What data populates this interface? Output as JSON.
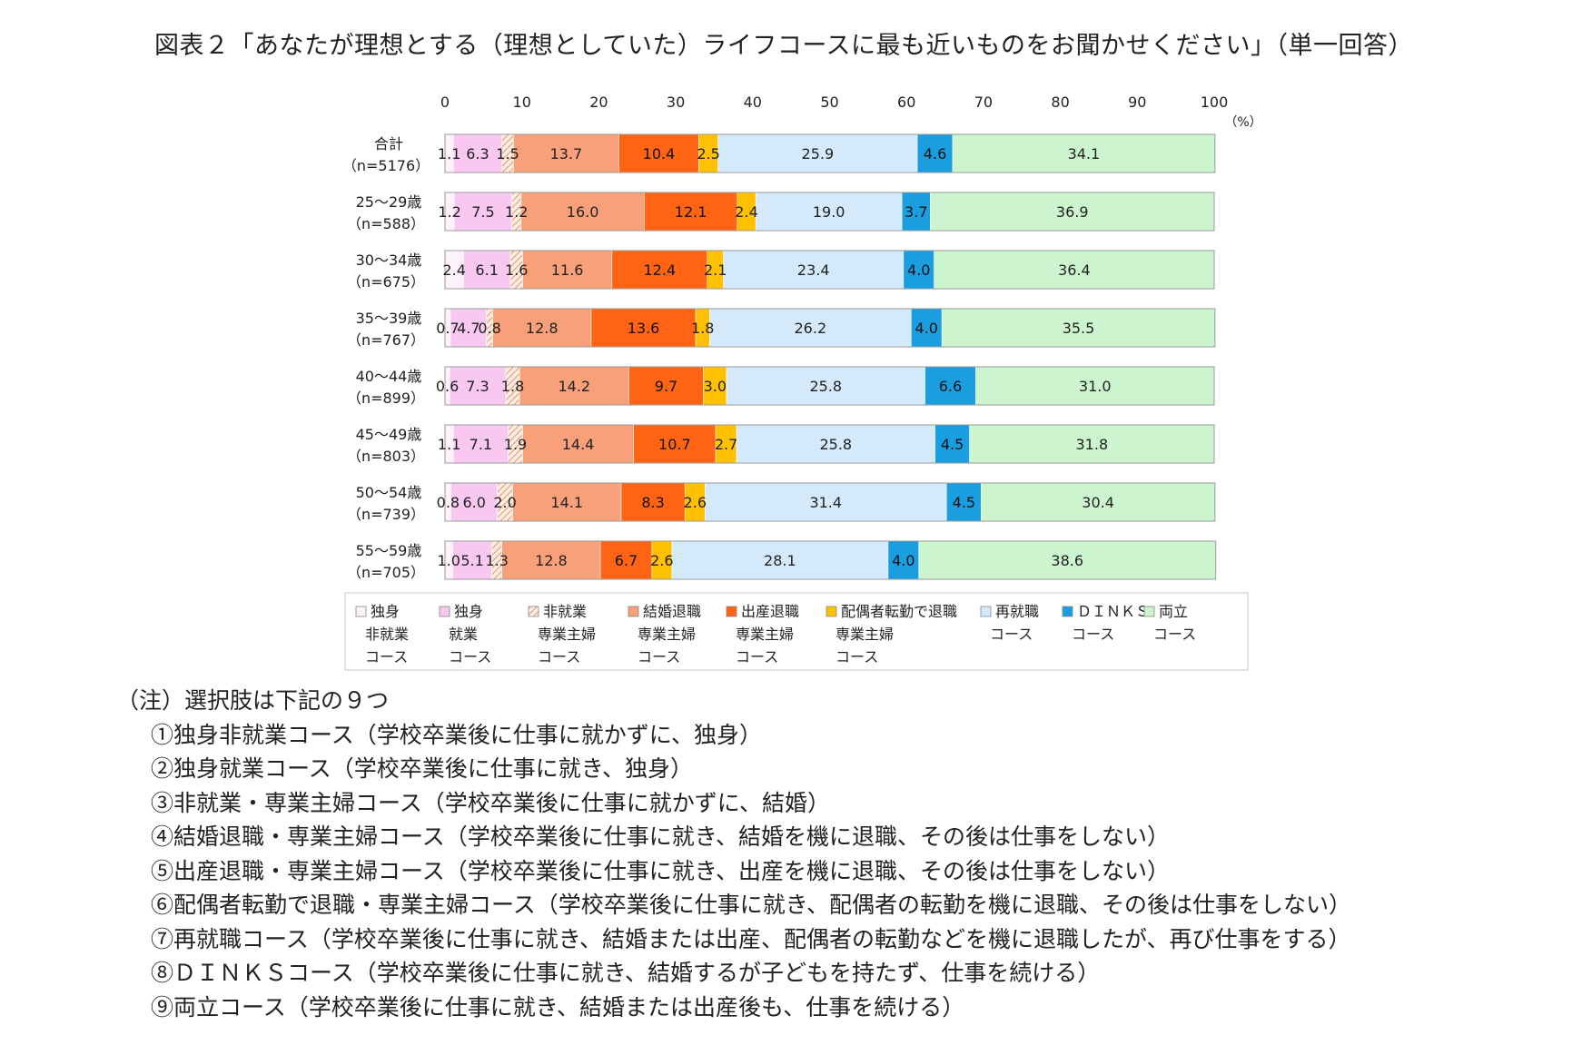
{
  "title": "図表２「あなたが理想とする（理想としていた）ライフコースに最も近いものをお聞かせください」（単一回答）",
  "chart_data": {
    "type": "bar",
    "orientation": "horizontal",
    "stacked": true,
    "unit_label": "（%）",
    "xlim": [
      0,
      100
    ],
    "ticks": [
      "0",
      "10",
      "20",
      "30",
      "40",
      "50",
      "60",
      "70",
      "80",
      "90",
      "100"
    ],
    "grid": false,
    "legend_position": "bottom",
    "categories": [
      {
        "name": "合計",
        "n": "（n=5176）"
      },
      {
        "name": "25～29歳",
        "n": "（n=588）"
      },
      {
        "name": "30～34歳",
        "n": "（n=675）"
      },
      {
        "name": "35～39歳",
        "n": "（n=767）"
      },
      {
        "name": "40～44歳",
        "n": "（n=899）"
      },
      {
        "name": "45～49歳",
        "n": "（n=803）"
      },
      {
        "name": "50～54歳",
        "n": "（n=739）"
      },
      {
        "name": "55～59歳",
        "n": "（n=705）"
      }
    ],
    "series": [
      {
        "legend": [
          "独身",
          "非就業",
          "コース"
        ],
        "color": "#fdf1fb",
        "pattern": "none",
        "values": [
          1.1,
          1.2,
          2.4,
          0.7,
          0.6,
          1.1,
          0.8,
          1.0
        ],
        "labels": [
          "1.1",
          "1.2",
          "2.4",
          "0.7",
          "0.6",
          "1.1",
          "0.8",
          "1.0"
        ]
      },
      {
        "legend": [
          "独身",
          "就業",
          "コース"
        ],
        "color": "#f8c8f0",
        "pattern": "none",
        "values": [
          6.3,
          7.5,
          6.1,
          4.7,
          7.3,
          7.1,
          6.0,
          5.1
        ],
        "labels": [
          "6.3",
          "7.5",
          "6.1",
          "4.7",
          "7.3",
          "7.1",
          "6.0",
          "5.1"
        ]
      },
      {
        "legend": [
          "非就業",
          "専業主婦",
          "コース"
        ],
        "color": "#fbe3d4",
        "pattern": "hatch",
        "values": [
          1.5,
          1.2,
          1.6,
          0.8,
          1.8,
          1.9,
          2.0,
          1.3
        ],
        "labels": [
          "1.5",
          "1.2",
          "1.6",
          "0.8",
          "1.8",
          "1.9",
          "2.0",
          "1.3"
        ]
      },
      {
        "legend": [
          "結婚退職",
          "専業主婦",
          "コース"
        ],
        "color": "#f7a07a",
        "pattern": "none",
        "values": [
          13.7,
          16.0,
          11.6,
          12.8,
          14.2,
          14.4,
          14.1,
          12.8
        ],
        "labels": [
          "13.7",
          "16.0",
          "11.6",
          "12.8",
          "14.2",
          "14.4",
          "14.1",
          "12.8"
        ]
      },
      {
        "legend": [
          "出産退職",
          "専業主婦",
          "コース"
        ],
        "color": "#ff6414",
        "pattern": "none",
        "values": [
          10.4,
          12.1,
          12.4,
          13.6,
          9.7,
          10.7,
          8.3,
          6.7
        ],
        "labels": [
          "10.4",
          "12.1",
          "12.4",
          "13.6",
          "9.7",
          "10.7",
          "8.3",
          "6.7"
        ]
      },
      {
        "legend": [
          "配偶者転勤で退職",
          "専業主婦",
          "コース"
        ],
        "color": "#ffc000",
        "pattern": "none",
        "values": [
          2.5,
          2.4,
          2.1,
          1.8,
          3.0,
          2.7,
          2.6,
          2.6
        ],
        "labels": [
          "2.5",
          "2.4",
          "2.1",
          "1.8",
          "3.0",
          "2.7",
          "2.6",
          "2.6"
        ]
      },
      {
        "legend": [
          "再就職",
          "コース"
        ],
        "color": "#d4eafb",
        "pattern": "none",
        "values": [
          25.9,
          19.0,
          23.4,
          26.2,
          25.8,
          25.8,
          31.4,
          28.1
        ],
        "labels": [
          "25.9",
          "19.0",
          "23.4",
          "26.2",
          "25.8",
          "25.8",
          "31.4",
          "28.1"
        ]
      },
      {
        "legend": [
          "ＤＩＮＫＳ",
          "コース"
        ],
        "color": "#1a9ee0",
        "pattern": "none",
        "values": [
          4.6,
          3.7,
          4.0,
          4.0,
          6.6,
          4.5,
          4.5,
          4.0
        ],
        "labels": [
          "4.6",
          "3.7",
          "4.0",
          "4.0",
          "6.6",
          "4.5",
          "4.5",
          "4.0"
        ]
      },
      {
        "legend": [
          "両立",
          "コース"
        ],
        "color": "#ccf5cf",
        "pattern": "none",
        "values": [
          34.1,
          36.9,
          36.4,
          35.5,
          31.0,
          31.8,
          30.4,
          38.6
        ],
        "labels": [
          "34.1",
          "36.9",
          "36.4",
          "35.5",
          "31.0",
          "31.8",
          "30.4",
          "38.6"
        ]
      }
    ]
  },
  "notes": {
    "heading": "（注）選択肢は下記の９つ",
    "items": [
      "①独身非就業コース（学校卒業後に仕事に就かずに、独身）",
      "②独身就業コース（学校卒業後に仕事に就き、独身）",
      "③非就業・専業主婦コース（学校卒業後に仕事に就かずに、結婚）",
      "④結婚退職・専業主婦コース（学校卒業後に仕事に就き、結婚を機に退職、その後は仕事をしない）",
      "⑤出産退職・専業主婦コース（学校卒業後に仕事に就き、出産を機に退職、その後は仕事をしない）",
      "⑥配偶者転勤で退職・専業主婦コース（学校卒業後に仕事に就き、配偶者の転勤を機に退職、その後は仕事をしない）",
      "⑦再就職コース（学校卒業後に仕事に就き、結婚または出産、配偶者の転勤などを機に退職したが、再び仕事をする）",
      "⑧ＤＩＮＫＳコース（学校卒業後に仕事に就き、結婚するが子どもを持たず、仕事を続ける）",
      "⑨両立コース（学校卒業後に仕事に就き、結婚または出産後も、仕事を続ける）"
    ]
  }
}
